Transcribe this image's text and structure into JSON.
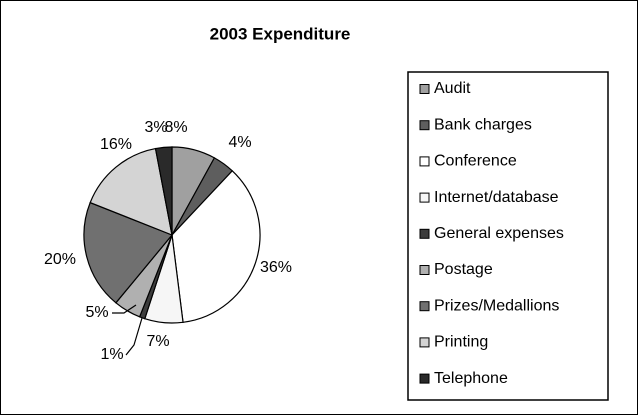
{
  "chart_data": {
    "type": "pie",
    "title": "2003 Expenditure",
    "categories": [
      "Audit",
      "Bank charges",
      "Conference",
      "Internet/database",
      "General expenses",
      "Postage",
      "Prizes/Medallions",
      "Printing",
      "Telephone"
    ],
    "values": [
      8,
      4,
      36,
      7,
      1,
      5,
      20,
      16,
      3
    ],
    "value_labels": [
      "8%",
      "4%",
      "36%",
      "7%",
      "1%",
      "5%",
      "20%",
      "16%",
      "3%"
    ],
    "colors": [
      "#a0a0a0",
      "#5e5e5e",
      "#ffffff",
      "#f6f6f6",
      "#3c3c3c",
      "#b0b0b0",
      "#707070",
      "#d4d4d4",
      "#2a2a2a"
    ],
    "legend": "right"
  }
}
